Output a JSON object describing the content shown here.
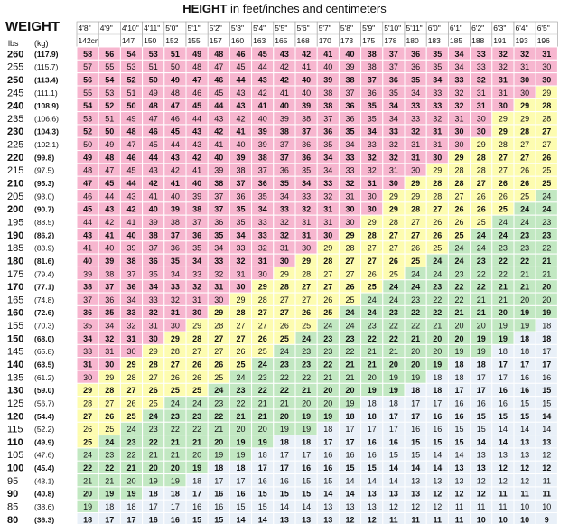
{
  "title": {
    "bold": "HEIGHT",
    "rest": " in feet/inches and centimeters"
  },
  "weight_label": "WEIGHT",
  "lbs_label": "lbs",
  "kg_label": "(kg)",
  "colors": {
    "underweight": "#e9f0f8",
    "healthy": "#c2e8c2",
    "overweight": "#fdfcb0",
    "obese": "#f7b6cf",
    "grid": "#ffffff"
  },
  "chart_data": {
    "type": "table",
    "heights_ft_in": [
      "4'8\"",
      "4'9\"",
      "4'10\"",
      "4'11\"",
      "5'0\"",
      "5'1\"",
      "5'2\"",
      "5'3\"",
      "5'4\"",
      "5'5\"",
      "5'6\"",
      "5'7\"",
      "5'8\"",
      "5'9\"",
      "5'10\"",
      "5'11\"",
      "6'0\"",
      "6'1\"",
      "6'2\"",
      "6'3\"",
      "6'4\"",
      "6'5\""
    ],
    "heights_cm": [
      "142cm",
      "",
      "147",
      "150",
      "152",
      "155",
      "157",
      "160",
      "163",
      "165",
      "168",
      "170",
      "173",
      "175",
      "178",
      "180",
      "183",
      "185",
      "188",
      "191",
      "193",
      "196"
    ],
    "weights_lbs": [
      260,
      255,
      250,
      245,
      240,
      235,
      230,
      225,
      220,
      215,
      210,
      205,
      200,
      195,
      190,
      185,
      180,
      175,
      170,
      165,
      160,
      155,
      150,
      145,
      140,
      135,
      130,
      125,
      120,
      115,
      110,
      105,
      100,
      95,
      90,
      85,
      80
    ],
    "weights_kg": [
      "(117.9)",
      "(115.7)",
      "(113.4)",
      "(111.1)",
      "(108.9)",
      "(106.6)",
      "(104.3)",
      "(102.1)",
      "(99.8)",
      "(97.5)",
      "(95.3)",
      "(93.0)",
      "(90.7)",
      "(88.5)",
      "(86.2)",
      "(83.9)",
      "(81.6)",
      "(79.4)",
      "(77.1)",
      "(74.8)",
      "(72.6)",
      "(70.3)",
      "(68.0)",
      "(65.8)",
      "(63.5)",
      "(61.2)",
      "(59.0)",
      "(56.7)",
      "(54.4)",
      "(52.2)",
      "(49.9)",
      "(47.6)",
      "(45.4)",
      "(43.1)",
      "(40.8)",
      "(38.6)",
      "(36.3)"
    ],
    "bmi": [
      [
        58,
        56,
        54,
        53,
        51,
        49,
        48,
        46,
        45,
        43,
        42,
        41,
        40,
        38,
        37,
        36,
        35,
        34,
        33,
        32,
        32,
        31
      ],
      [
        57,
        55,
        53,
        51,
        50,
        48,
        47,
        45,
        44,
        42,
        41,
        40,
        39,
        38,
        37,
        36,
        35,
        34,
        33,
        32,
        31,
        30
      ],
      [
        56,
        54,
        52,
        50,
        49,
        47,
        46,
        44,
        43,
        42,
        40,
        39,
        38,
        37,
        36,
        35,
        34,
        33,
        32,
        31,
        30,
        30
      ],
      [
        55,
        53,
        51,
        49,
        48,
        46,
        45,
        43,
        42,
        41,
        40,
        38,
        37,
        36,
        35,
        34,
        33,
        32,
        31,
        31,
        30,
        29
      ],
      [
        54,
        52,
        50,
        48,
        47,
        45,
        44,
        43,
        41,
        40,
        39,
        38,
        36,
        35,
        34,
        33,
        33,
        32,
        31,
        30,
        29,
        28
      ],
      [
        53,
        51,
        49,
        47,
        46,
        44,
        43,
        42,
        40,
        39,
        38,
        37,
        36,
        35,
        34,
        33,
        32,
        31,
        30,
        29,
        29,
        28
      ],
      [
        52,
        50,
        48,
        46,
        45,
        43,
        42,
        41,
        39,
        38,
        37,
        36,
        35,
        34,
        33,
        32,
        31,
        30,
        30,
        29,
        28,
        27
      ],
      [
        50,
        49,
        47,
        45,
        44,
        43,
        41,
        40,
        39,
        37,
        36,
        35,
        34,
        33,
        32,
        31,
        31,
        30,
        29,
        28,
        27,
        27
      ],
      [
        49,
        48,
        46,
        44,
        43,
        42,
        40,
        39,
        38,
        37,
        36,
        34,
        33,
        32,
        32,
        31,
        30,
        29,
        28,
        27,
        27,
        26
      ],
      [
        48,
        47,
        45,
        43,
        42,
        41,
        39,
        38,
        37,
        36,
        35,
        34,
        33,
        32,
        31,
        30,
        29,
        28,
        28,
        27,
        26,
        25
      ],
      [
        47,
        45,
        44,
        42,
        41,
        40,
        38,
        37,
        36,
        35,
        34,
        33,
        32,
        31,
        30,
        29,
        28,
        28,
        27,
        26,
        26,
        25
      ],
      [
        46,
        44,
        43,
        41,
        40,
        39,
        37,
        36,
        35,
        34,
        33,
        32,
        31,
        30,
        29,
        29,
        28,
        27,
        26,
        26,
        25,
        24
      ],
      [
        45,
        43,
        42,
        40,
        39,
        38,
        37,
        35,
        34,
        33,
        32,
        31,
        30,
        30,
        29,
        28,
        27,
        26,
        26,
        25,
        24,
        24
      ],
      [
        44,
        42,
        41,
        39,
        38,
        37,
        36,
        35,
        33,
        32,
        31,
        31,
        30,
        29,
        28,
        27,
        26,
        26,
        25,
        24,
        24,
        23
      ],
      [
        43,
        41,
        40,
        38,
        37,
        36,
        35,
        34,
        33,
        32,
        31,
        30,
        29,
        28,
        27,
        27,
        26,
        25,
        24,
        24,
        23,
        23
      ],
      [
        41,
        40,
        39,
        37,
        36,
        35,
        34,
        33,
        32,
        31,
        30,
        29,
        28,
        27,
        27,
        26,
        25,
        24,
        24,
        23,
        23,
        22
      ],
      [
        40,
        39,
        38,
        36,
        35,
        34,
        33,
        32,
        31,
        30,
        29,
        28,
        27,
        27,
        26,
        25,
        24,
        24,
        23,
        22,
        22,
        21
      ],
      [
        39,
        38,
        37,
        35,
        34,
        33,
        32,
        31,
        30,
        29,
        28,
        27,
        27,
        26,
        25,
        24,
        24,
        23,
        22,
        22,
        21,
        21
      ],
      [
        38,
        37,
        36,
        34,
        33,
        32,
        31,
        30,
        29,
        28,
        27,
        27,
        26,
        25,
        24,
        24,
        23,
        22,
        22,
        21,
        21,
        20
      ],
      [
        37,
        36,
        34,
        33,
        32,
        31,
        30,
        29,
        28,
        27,
        27,
        26,
        25,
        24,
        24,
        23,
        22,
        22,
        21,
        21,
        20,
        20
      ],
      [
        36,
        35,
        33,
        32,
        31,
        30,
        29,
        28,
        27,
        27,
        26,
        25,
        24,
        24,
        23,
        22,
        22,
        21,
        21,
        20,
        19,
        19
      ],
      [
        35,
        34,
        32,
        31,
        30,
        29,
        28,
        27,
        27,
        26,
        25,
        24,
        24,
        23,
        22,
        22,
        21,
        20,
        20,
        19,
        19,
        18
      ],
      [
        34,
        32,
        31,
        30,
        29,
        28,
        27,
        27,
        26,
        25,
        24,
        23,
        23,
        22,
        22,
        21,
        20,
        20,
        19,
        19,
        18,
        18
      ],
      [
        33,
        31,
        30,
        29,
        28,
        27,
        27,
        26,
        25,
        24,
        23,
        23,
        22,
        21,
        21,
        20,
        20,
        19,
        19,
        18,
        18,
        17
      ],
      [
        31,
        30,
        29,
        28,
        27,
        26,
        26,
        25,
        24,
        23,
        23,
        22,
        21,
        21,
        20,
        20,
        19,
        18,
        18,
        17,
        17,
        17
      ],
      [
        30,
        29,
        28,
        27,
        26,
        26,
        25,
        24,
        23,
        22,
        22,
        21,
        21,
        20,
        19,
        19,
        18,
        18,
        17,
        17,
        16,
        16
      ],
      [
        29,
        28,
        27,
        26,
        25,
        25,
        24,
        23,
        22,
        22,
        21,
        20,
        20,
        19,
        19,
        18,
        18,
        17,
        17,
        16,
        16,
        15
      ],
      [
        28,
        27,
        26,
        25,
        24,
        24,
        23,
        22,
        21,
        21,
        20,
        20,
        19,
        18,
        18,
        17,
        17,
        16,
        16,
        16,
        15,
        15
      ],
      [
        27,
        26,
        25,
        24,
        23,
        23,
        22,
        21,
        21,
        20,
        19,
        19,
        18,
        18,
        17,
        17,
        16,
        16,
        15,
        15,
        15,
        14
      ],
      [
        26,
        25,
        24,
        23,
        22,
        22,
        21,
        20,
        20,
        19,
        19,
        18,
        17,
        17,
        17,
        16,
        16,
        15,
        15,
        14,
        14,
        14
      ],
      [
        25,
        24,
        23,
        22,
        21,
        21,
        20,
        19,
        19,
        18,
        18,
        17,
        17,
        16,
        16,
        15,
        15,
        15,
        14,
        14,
        13,
        13
      ],
      [
        24,
        23,
        22,
        21,
        21,
        20,
        19,
        19,
        18,
        17,
        17,
        16,
        16,
        16,
        15,
        15,
        14,
        14,
        13,
        13,
        13,
        12
      ],
      [
        22,
        22,
        21,
        20,
        20,
        19,
        18,
        18,
        17,
        17,
        16,
        16,
        15,
        15,
        14,
        14,
        14,
        13,
        13,
        12,
        12,
        12
      ],
      [
        21,
        21,
        20,
        19,
        19,
        18,
        17,
        17,
        16,
        16,
        15,
        15,
        14,
        14,
        14,
        13,
        13,
        13,
        12,
        12,
        12,
        11
      ],
      [
        20,
        19,
        19,
        18,
        18,
        17,
        16,
        16,
        15,
        15,
        15,
        14,
        14,
        13,
        13,
        13,
        12,
        12,
        12,
        11,
        11,
        11
      ],
      [
        19,
        18,
        18,
        17,
        17,
        16,
        16,
        15,
        15,
        14,
        14,
        13,
        13,
        13,
        12,
        12,
        12,
        11,
        11,
        11,
        10,
        10
      ],
      [
        18,
        17,
        17,
        16,
        16,
        15,
        15,
        14,
        14,
        13,
        13,
        13,
        12,
        12,
        11,
        11,
        11,
        11,
        10,
        10,
        10,
        9
      ]
    ]
  }
}
